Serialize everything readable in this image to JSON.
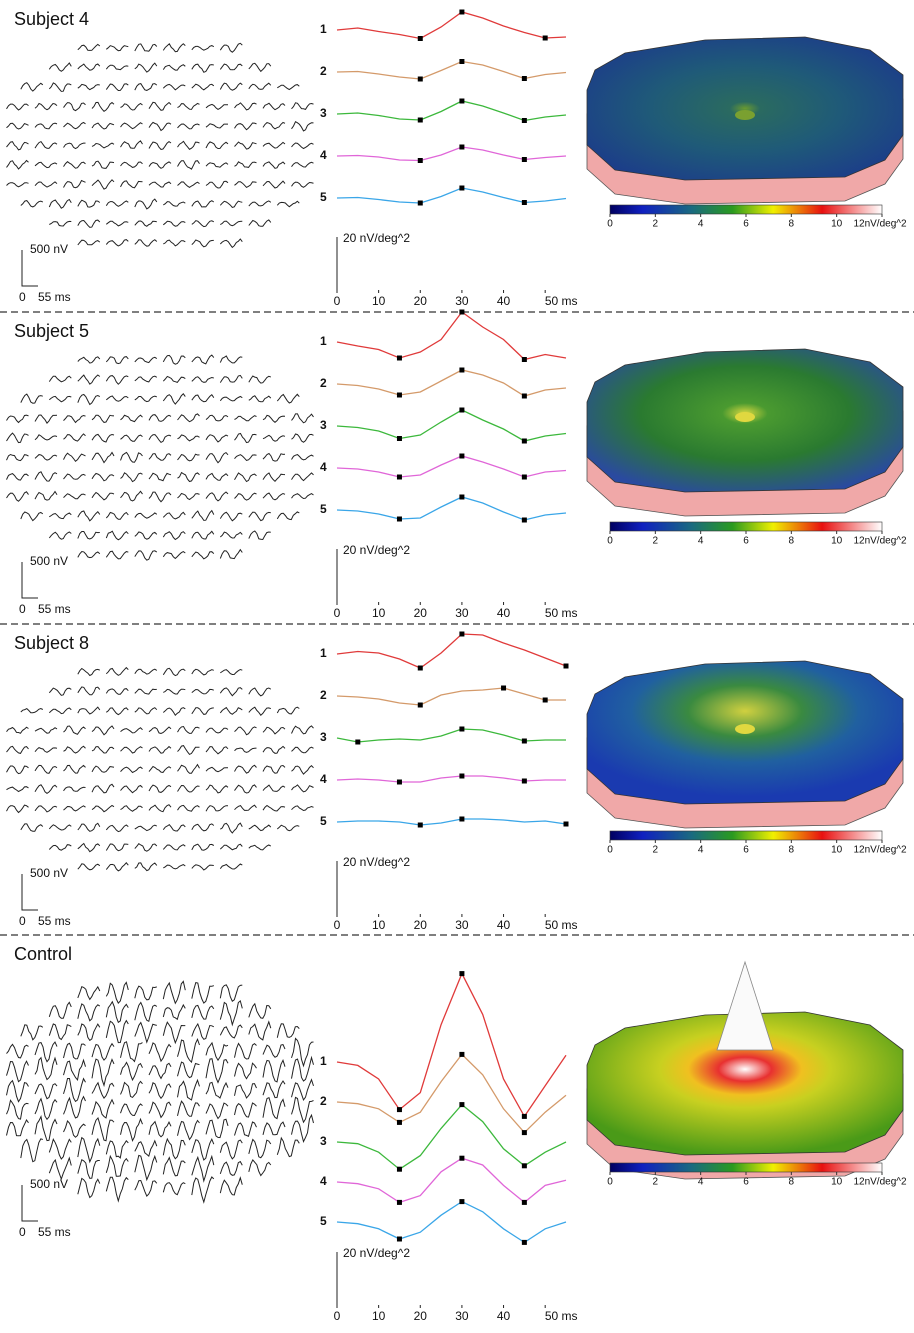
{
  "chart_data": [
    {
      "type": "line",
      "title": "Subject 4",
      "array_scale_labels": [
        "500 nV",
        "0",
        "55 ms"
      ],
      "scale_label": "20 nV/deg^2",
      "x": [
        0,
        5,
        10,
        15,
        20,
        25,
        30,
        35,
        40,
        45,
        50,
        55
      ],
      "xlim": [
        0,
        55
      ],
      "xticks": [
        0,
        10,
        20,
        30,
        40,
        {
          "value": 50,
          "label": "50 ms"
        }
      ],
      "series": [
        {
          "name": "1",
          "color": "#e03a3a",
          "values": [
            0,
            0.4,
            -0.3,
            -0.9,
            -1.7,
            0.6,
            3.6,
            2.4,
            0.8,
            -0.5,
            -1.6,
            -1.4
          ]
        },
        {
          "name": "2",
          "color": "#d49a6a",
          "values": [
            0,
            0.1,
            -0.4,
            -1.0,
            -1.4,
            0.3,
            2.1,
            1.4,
            0.1,
            -1.3,
            -0.5,
            -0.1
          ]
        },
        {
          "name": "3",
          "color": "#3cb83c",
          "values": [
            0,
            0.2,
            -0.3,
            -1.0,
            -1.2,
            0.5,
            2.6,
            1.6,
            0.2,
            -1.3,
            -0.6,
            -0.2
          ]
        },
        {
          "name": "4",
          "color": "#e066d8",
          "values": [
            0,
            0.1,
            -0.2,
            -0.8,
            -0.9,
            0.2,
            1.8,
            1.2,
            0.2,
            -0.7,
            -0.3,
            0
          ]
        },
        {
          "name": "5",
          "color": "#3aa6e8",
          "values": [
            0,
            0.1,
            -0.3,
            -0.8,
            -1.0,
            0.3,
            2.0,
            1.2,
            0.1,
            -0.9,
            -0.6,
            -0.1
          ]
        }
      ],
      "colorbar": {
        "lim": [
          0,
          12
        ],
        "ticks": [
          0,
          2,
          4,
          6,
          8,
          10,
          {
            "value": 12,
            "label": "12nV/deg^2"
          }
        ]
      }
    },
    {
      "type": "line",
      "title": "Subject 5",
      "array_scale_labels": [
        "500 nV",
        "0",
        "55 ms"
      ],
      "scale_label": "20 nV/deg^2",
      "x": [
        0,
        5,
        10,
        15,
        20,
        25,
        30,
        35,
        40,
        45,
        50,
        55
      ],
      "xlim": [
        0,
        55
      ],
      "xticks": [
        0,
        10,
        20,
        30,
        40,
        {
          "value": 50,
          "label": "50 ms"
        }
      ],
      "series": [
        {
          "name": "1",
          "color": "#e03a3a",
          "values": [
            0,
            -0.8,
            -1.5,
            -3.2,
            -2.0,
            0.5,
            6.0,
            3.0,
            0.5,
            -3.5,
            -2.5,
            -3.2
          ]
        },
        {
          "name": "2",
          "color": "#d49a6a",
          "values": [
            0,
            -0.3,
            -1.0,
            -2.2,
            -1.6,
            0.6,
            2.8,
            1.8,
            0.2,
            -2.4,
            -1.2,
            -0.8
          ]
        },
        {
          "name": "3",
          "color": "#3cb83c",
          "values": [
            0,
            -0.3,
            -1.0,
            -2.5,
            -1.8,
            0.8,
            3.2,
            1.2,
            -0.6,
            -3.0,
            -2.0,
            -1.5
          ]
        },
        {
          "name": "4",
          "color": "#e066d8",
          "values": [
            0,
            -0.2,
            -0.8,
            -1.8,
            -1.4,
            0.6,
            2.4,
            1.2,
            -0.2,
            -1.8,
            -0.8,
            -0.5
          ]
        },
        {
          "name": "5",
          "color": "#3aa6e8",
          "values": [
            0,
            -0.2,
            -0.8,
            -1.8,
            -1.6,
            0.6,
            2.6,
            1.4,
            -0.4,
            -2.0,
            -1.0,
            -0.6
          ]
        }
      ],
      "colorbar": {
        "lim": [
          0,
          12
        ],
        "ticks": [
          0,
          2,
          4,
          6,
          8,
          10,
          {
            "value": 12,
            "label": "12nV/deg^2"
          }
        ]
      }
    },
    {
      "type": "line",
      "title": "Subject 8",
      "array_scale_labels": [
        "500 nV",
        "0",
        "55 ms"
      ],
      "scale_label": "20 nV/deg^2",
      "x": [
        0,
        5,
        10,
        15,
        20,
        25,
        30,
        35,
        40,
        45,
        50,
        55
      ],
      "xlim": [
        0,
        55
      ],
      "xticks": [
        0,
        10,
        20,
        30,
        40,
        {
          "value": 50,
          "label": "50 ms"
        }
      ],
      "series": [
        {
          "name": "1",
          "color": "#e03a3a",
          "values": [
            0,
            0.5,
            0.2,
            -1.0,
            -2.8,
            0.2,
            4.0,
            3.8,
            2.2,
            0.8,
            -0.8,
            -2.4
          ]
        },
        {
          "name": "2",
          "color": "#d49a6a",
          "values": [
            0,
            -0.2,
            -0.6,
            -1.4,
            -1.8,
            0.2,
            1.0,
            1.2,
            1.6,
            0.4,
            -0.8,
            -0.8
          ]
        },
        {
          "name": "3",
          "color": "#3cb83c",
          "values": [
            0,
            -0.8,
            -0.4,
            -0.2,
            -0.4,
            0.4,
            1.8,
            1.6,
            0.6,
            -0.6,
            -0.4,
            -0.4
          ]
        },
        {
          "name": "4",
          "color": "#e066d8",
          "values": [
            0,
            0.2,
            0,
            -0.4,
            -0.4,
            0.4,
            0.8,
            0.8,
            0.4,
            -0.2,
            0,
            0
          ]
        },
        {
          "name": "5",
          "color": "#3aa6e8",
          "values": [
            0,
            0.2,
            0.2,
            0,
            -0.6,
            -0.2,
            0.6,
            0.6,
            0.4,
            0,
            0.2,
            -0.4
          ]
        }
      ],
      "colorbar": {
        "lim": [
          0,
          12
        ],
        "ticks": [
          0,
          2,
          4,
          6,
          8,
          10,
          {
            "value": 12,
            "label": "12nV/deg^2"
          }
        ]
      }
    },
    {
      "type": "line",
      "title": "Control",
      "array_scale_labels": [
        "500 nV",
        "0",
        "55 ms"
      ],
      "scale_label": "20 nV/deg^2",
      "x": [
        0,
        5,
        10,
        15,
        20,
        25,
        30,
        35,
        40,
        45,
        50,
        55
      ],
      "xlim": [
        0,
        55
      ],
      "xticks": [
        0,
        10,
        20,
        30,
        40,
        {
          "value": 50,
          "label": "50 ms"
        }
      ],
      "series": [
        {
          "name": "1",
          "color": "#e03a3a",
          "values": [
            0,
            -2,
            -10,
            -28,
            -18,
            22,
            52,
            28,
            -10,
            -32,
            -14,
            4
          ]
        },
        {
          "name": "2",
          "color": "#d49a6a",
          "values": [
            0,
            -1,
            -4,
            -12,
            -6,
            12,
            28,
            16,
            -4,
            -18,
            -6,
            4
          ]
        },
        {
          "name": "3",
          "color": "#3cb83c",
          "values": [
            0,
            -1,
            -6,
            -16,
            -8,
            8,
            22,
            12,
            -4,
            -14,
            -6,
            0
          ]
        },
        {
          "name": "4",
          "color": "#e066d8",
          "values": [
            0,
            -1,
            -4,
            -12,
            -8,
            6,
            14,
            10,
            -2,
            -12,
            -2,
            1
          ]
        },
        {
          "name": "5",
          "color": "#3aa6e8",
          "values": [
            0,
            -1,
            -4,
            -10,
            -6,
            4,
            12,
            6,
            -4,
            -12,
            -4,
            0
          ]
        }
      ],
      "colorbar": {
        "lim": [
          0,
          12
        ],
        "ticks": [
          0,
          2,
          4,
          6,
          8,
          10,
          {
            "value": 12,
            "label": "12nV/deg^2"
          }
        ]
      }
    }
  ]
}
